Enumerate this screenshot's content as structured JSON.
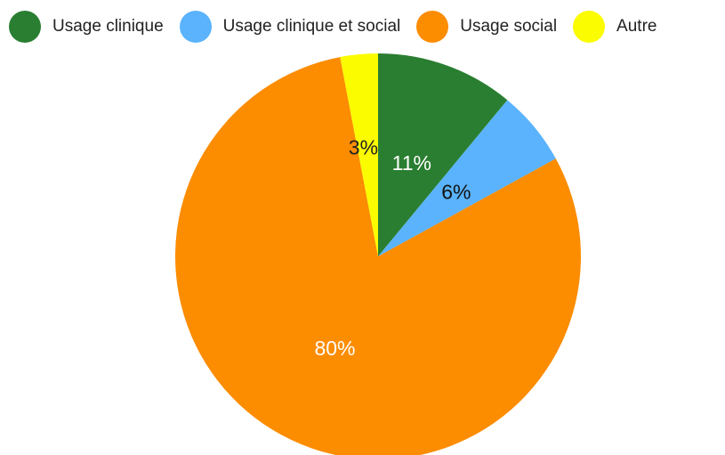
{
  "chart_data": {
    "type": "pie",
    "legend_position": "top",
    "slices": [
      {
        "label": "Usage clinique",
        "value": 11,
        "display": "11%",
        "color": "#2a7e31",
        "text_color": "#ffffff"
      },
      {
        "label": "Usage clinique et social",
        "value": 6,
        "display": "6%",
        "color": "#5ab3fc",
        "text_color": "#111111"
      },
      {
        "label": "Usage social",
        "value": 80,
        "display": "80%",
        "color": "#fc8c00",
        "text_color": "#ffffff"
      },
      {
        "label": "Autre",
        "value": 3,
        "display": "3%",
        "color": "#fcfc00",
        "text_color": "#222222"
      }
    ]
  }
}
